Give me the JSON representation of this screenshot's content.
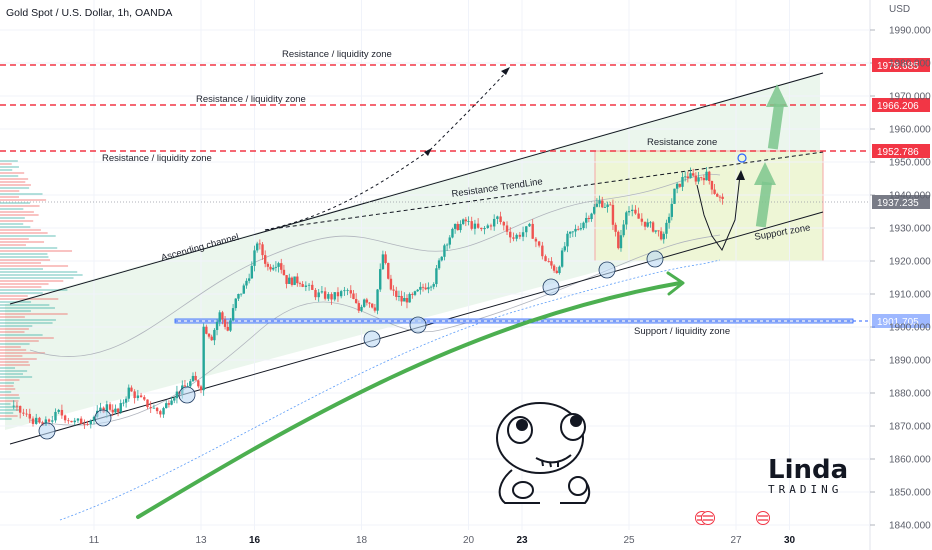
{
  "header": {
    "title": "Gold Spot / U.S. Dollar, 1h, OANDA",
    "currency": "USD"
  },
  "colors": {
    "up": "#26a69a",
    "down": "#ef5350",
    "resistance": "#f23645",
    "support": "#2962ff",
    "channel_fill": "#e7f4ea",
    "zone_fill": "#f2f7dc",
    "arrow_green": "#4caf50"
  },
  "chart_data": {
    "type": "candlestick",
    "symbol": "Gold Spot / U.S. Dollar",
    "timeframe": "1h",
    "ylim": [
      1839,
      1997
    ],
    "y_ticks": [
      1840,
      1850,
      1860,
      1870,
      1880,
      1890,
      1900,
      1910,
      1920,
      1930,
      1940,
      1950,
      1960,
      1970,
      1980,
      1990
    ],
    "x_ticks": [
      {
        "label": "11",
        "x": 10.5,
        "bold": false
      },
      {
        "label": "13",
        "x": 12.5,
        "bold": false
      },
      {
        "label": "16",
        "x": 13.5,
        "bold": true
      },
      {
        "label": "18",
        "x": 15.5,
        "bold": false
      },
      {
        "label": "20",
        "x": 17.5,
        "bold": false
      },
      {
        "label": "23",
        "x": 18.5,
        "bold": true
      },
      {
        "label": "25",
        "x": 20.5,
        "bold": false
      },
      {
        "label": "27",
        "x": 22.5,
        "bold": false
      },
      {
        "label": "30",
        "x": 23.5,
        "bold": true
      }
    ],
    "price_path": [
      [
        9.0,
        1876
      ],
      [
        9.3,
        1873
      ],
      [
        9.6,
        1870
      ],
      [
        9.9,
        1874
      ],
      [
        10.2,
        1871
      ],
      [
        10.5,
        1872
      ],
      [
        10.8,
        1876
      ],
      [
        11.0,
        1874
      ],
      [
        11.2,
        1881
      ],
      [
        11.5,
        1877
      ],
      [
        11.8,
        1874
      ],
      [
        12.0,
        1879
      ],
      [
        12.2,
        1881
      ],
      [
        12.4,
        1884
      ],
      [
        12.55,
        1882
      ],
      [
        12.6,
        1900
      ],
      [
        12.75,
        1897
      ],
      [
        12.9,
        1904
      ],
      [
        13.05,
        1899
      ],
      [
        13.2,
        1908
      ],
      [
        13.35,
        1912
      ],
      [
        13.5,
        1918
      ],
      [
        13.6,
        1926
      ],
      [
        13.8,
        1918
      ],
      [
        14.0,
        1920
      ],
      [
        14.15,
        1914
      ],
      [
        14.4,
        1914
      ],
      [
        14.7,
        1910
      ],
      [
        15.0,
        1909
      ],
      [
        15.3,
        1911
      ],
      [
        15.5,
        1905
      ],
      [
        15.6,
        1909
      ],
      [
        15.8,
        1906
      ],
      [
        15.95,
        1922
      ],
      [
        16.1,
        1911
      ],
      [
        16.3,
        1908
      ],
      [
        16.5,
        1909
      ],
      [
        16.7,
        1912
      ],
      [
        16.9,
        1914
      ],
      [
        17.1,
        1925
      ],
      [
        17.3,
        1930
      ],
      [
        17.5,
        1932
      ],
      [
        17.8,
        1929
      ],
      [
        18.1,
        1933
      ],
      [
        18.4,
        1927
      ],
      [
        18.7,
        1930
      ],
      [
        19.0,
        1920
      ],
      [
        19.2,
        1917
      ],
      [
        19.4,
        1927
      ],
      [
        19.6,
        1930
      ],
      [
        19.8,
        1934
      ],
      [
        20.0,
        1938
      ],
      [
        20.2,
        1936
      ],
      [
        20.35,
        1924
      ],
      [
        20.5,
        1936
      ],
      [
        20.8,
        1932
      ],
      [
        21.0,
        1930
      ],
      [
        21.2,
        1927
      ],
      [
        21.4,
        1941
      ],
      [
        21.6,
        1946
      ],
      [
        21.8,
        1945
      ],
      [
        22.0,
        1946
      ],
      [
        22.15,
        1941
      ],
      [
        22.3,
        1938
      ]
    ],
    "current_price": 1937.235,
    "resistance_levels": [
      1978.685,
      1966.206,
      1952.786
    ],
    "support_level": 1901.705,
    "annotations": [
      "Resistance / liquidity zone",
      "Resistance / liquidity zone",
      "Resistance / liquidity zone",
      "Resistance zone",
      "Resistance TrendLine",
      "Ascending channel",
      "Support zone",
      "Support / liquidity zone"
    ],
    "price_labels": [
      "1978.685",
      "1966.206",
      "1952.786",
      "1937.235",
      "1901.705"
    ]
  },
  "logo": {
    "big": "Linda",
    "small": "TRADING"
  }
}
